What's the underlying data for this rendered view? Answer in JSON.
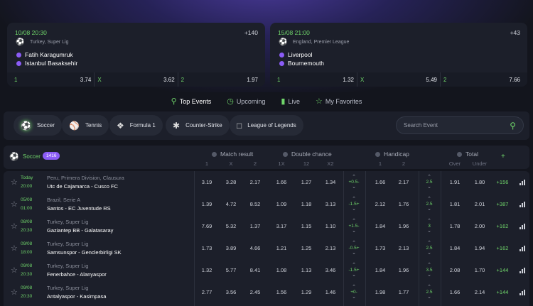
{
  "featured": [
    {
      "datetime": "10/08  20:30",
      "more": "+140",
      "league": "Turkey, Super Lig",
      "home": "Fatih Karagumruk",
      "away": "Istanbul Basaksehir",
      "odds": [
        {
          "k": "1",
          "v": "3.74"
        },
        {
          "k": "X",
          "v": "3.62"
        },
        {
          "k": "2",
          "v": "1.97"
        }
      ]
    },
    {
      "datetime": "15/08  21:00",
      "more": "+43",
      "league": "England, Premier League",
      "home": "Liverpool",
      "away": "Bournemouth",
      "odds": [
        {
          "k": "1",
          "v": "1.32"
        },
        {
          "k": "X",
          "v": "5.49"
        },
        {
          "k": "2",
          "v": "7.66"
        }
      ]
    }
  ],
  "nav": [
    {
      "label": "Top Events",
      "icon": "trophy-icon"
    },
    {
      "label": "Upcoming",
      "icon": "clock-icon"
    },
    {
      "label": "Live",
      "icon": "live-icon"
    },
    {
      "label": "My Favorites",
      "icon": "star-icon"
    }
  ],
  "sports": [
    {
      "label": "Soccer",
      "icon": "soccer-icon"
    },
    {
      "label": "Tennis",
      "icon": "tennis-icon"
    },
    {
      "label": "Formula 1",
      "icon": "formula-icon"
    },
    {
      "label": "Counter-Strike",
      "icon": "counter-strike-icon"
    },
    {
      "label": "League of Legends",
      "icon": "league-of-legends-icon"
    }
  ],
  "search": {
    "placeholder": "Search Event"
  },
  "table": {
    "sport": "Soccer",
    "count": "1416",
    "plus": "+",
    "groups": [
      {
        "label": "Match result",
        "cols": [
          "1",
          "X",
          "2"
        ]
      },
      {
        "label": "Double chance",
        "cols": [
          "1X",
          "12",
          "X2"
        ]
      },
      {
        "label": "Handicap",
        "cols": [
          "1",
          "2"
        ]
      },
      {
        "label": "Total",
        "cols": [
          "Over",
          "Under"
        ]
      }
    ],
    "rows": [
      {
        "d1": "Today",
        "d2": "20:00",
        "league": "Peru, Primera Division, Clausura",
        "match": "Utc de Cajamarca  -  Cusco FC",
        "mr": [
          "3.19",
          "3.28",
          "2.17"
        ],
        "dc": [
          "1.66",
          "1.27",
          "1.34"
        ],
        "hcap": "+0.5-",
        "h": [
          "1.66",
          "2.17"
        ],
        "tline": "2.5",
        "t": [
          "1.91",
          "1.80"
        ],
        "more": "+156"
      },
      {
        "d1": "05/08",
        "d2": "01:00",
        "league": "Brazil, Serie A",
        "match": "Santos  -  EC Juventude RS",
        "mr": [
          "1.39",
          "4.72",
          "8.52"
        ],
        "dc": [
          "1.09",
          "1.18",
          "3.13"
        ],
        "hcap": "-1.5+",
        "h": [
          "2.12",
          "1.76"
        ],
        "tline": "2.5",
        "t": [
          "1.81",
          "2.01"
        ],
        "more": "+387"
      },
      {
        "d1": "08/08",
        "d2": "20:30",
        "league": "Turkey, Super Lig",
        "match": "Gaziantep BB  -  Galatasaray",
        "mr": [
          "7.69",
          "5.32",
          "1.37"
        ],
        "dc": [
          "3.17",
          "1.15",
          "1.10"
        ],
        "hcap": "+1.5-",
        "h": [
          "1.84",
          "1.96"
        ],
        "tline": "3",
        "t": [
          "1.78",
          "2.00"
        ],
        "more": "+162"
      },
      {
        "d1": "09/08",
        "d2": "18:00",
        "league": "Turkey, Super Lig",
        "match": "Samsunspor  -  Genclerbirligi SK",
        "mr": [
          "1.73",
          "3.89",
          "4.66"
        ],
        "dc": [
          "1.21",
          "1.25",
          "2.13"
        ],
        "hcap": "-0.5+",
        "h": [
          "1.73",
          "2.13"
        ],
        "tline": "2.5",
        "t": [
          "1.84",
          "1.94"
        ],
        "more": "+162"
      },
      {
        "d1": "09/08",
        "d2": "20:30",
        "league": "Turkey, Super Lig",
        "match": "Fenerbahce  -  Alanyaspor",
        "mr": [
          "1.32",
          "5.77",
          "8.41"
        ],
        "dc": [
          "1.08",
          "1.13",
          "3.46"
        ],
        "hcap": "-1.5+",
        "h": [
          "1.84",
          "1.96"
        ],
        "tline": "3.5",
        "t": [
          "2.08",
          "1.70"
        ],
        "more": "+144"
      },
      {
        "d1": "09/08",
        "d2": "20:30",
        "league": "Turkey, Super Lig",
        "match": "Antalyaspor  -  Kasimpasa",
        "mr": [
          "2.77",
          "3.56",
          "2.45"
        ],
        "dc": [
          "1.56",
          "1.29",
          "1.46"
        ],
        "hcap": "+0-",
        "h": [
          "1.98",
          "1.77"
        ],
        "tline": "2.5",
        "t": [
          "1.66",
          "2.14"
        ],
        "more": "+144"
      }
    ]
  },
  "colors": {
    "accent": "#6fd46a",
    "badge": "#8b5cf6",
    "bg": "#13151d",
    "panel": "#1c1f2a"
  }
}
